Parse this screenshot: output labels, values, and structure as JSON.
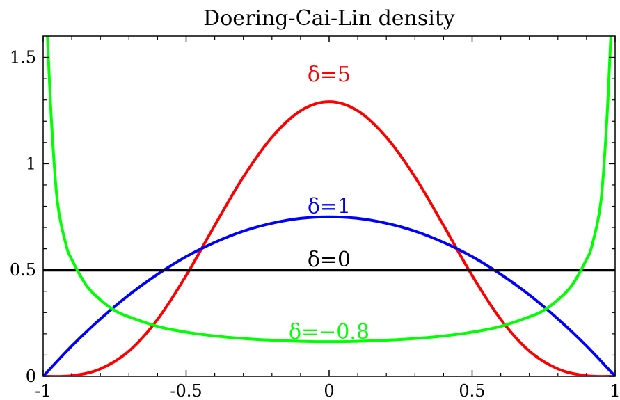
{
  "chart_data": {
    "type": "line",
    "title": "Doering-Cai-Lin density",
    "xlabel": "",
    "ylabel": "",
    "xlim": [
      -1,
      1
    ],
    "ylim": [
      0,
      1.6
    ],
    "x_ticks": [
      -1,
      -0.5,
      0,
      0.5,
      1
    ],
    "x_tick_labels": [
      "-1",
      "-0.5",
      "0",
      "0.5",
      "1"
    ],
    "y_ticks": [
      0,
      0.5,
      1,
      1.5
    ],
    "y_tick_labels": [
      "0",
      "0.5",
      "1",
      "1.5"
    ],
    "grid": false,
    "legend": "none",
    "series": [
      {
        "label": "δ=5",
        "delta": 5,
        "color": "#ff0000",
        "x": [
          -1,
          -0.9,
          -0.8,
          -0.7,
          -0.6,
          -0.5,
          -0.4,
          -0.3,
          -0.2,
          -0.1,
          0,
          0.1,
          0.2,
          0.3,
          0.4,
          0.5,
          0.6,
          0.7,
          0.8,
          0.9,
          1
        ],
        "values": [
          0,
          0.003,
          0.035,
          0.119,
          0.268,
          0.474,
          0.71,
          0.938,
          1.125,
          1.249,
          1.292,
          1.249,
          1.125,
          0.938,
          0.71,
          0.474,
          0.268,
          0.119,
          0.035,
          0.003,
          0
        ]
      },
      {
        "label": "δ=1",
        "delta": 1,
        "color": "#0000ff",
        "x": [
          -1,
          -0.9,
          -0.8,
          -0.7,
          -0.6,
          -0.5,
          -0.4,
          -0.3,
          -0.2,
          -0.1,
          0,
          0.1,
          0.2,
          0.3,
          0.4,
          0.5,
          0.6,
          0.7,
          0.8,
          0.9,
          1
        ],
        "values": [
          0,
          0.143,
          0.27,
          0.383,
          0.48,
          0.563,
          0.63,
          0.683,
          0.72,
          0.743,
          0.75,
          0.743,
          0.72,
          0.683,
          0.63,
          0.563,
          0.48,
          0.383,
          0.27,
          0.143,
          0
        ]
      },
      {
        "label": "δ=0",
        "delta": 0,
        "color": "#000000",
        "x": [
          -1,
          1
        ],
        "values": [
          0.5,
          0.5
        ]
      },
      {
        "label": "δ=−0.8",
        "delta": -0.8,
        "color": "#00ff00",
        "x": [
          -0.985,
          -0.97,
          -0.95,
          -0.92,
          -0.9,
          -0.85,
          -0.8,
          -0.75,
          -0.7,
          -0.6,
          -0.5,
          -0.4,
          -0.3,
          -0.2,
          -0.1,
          0,
          0.1,
          0.2,
          0.3,
          0.4,
          0.5,
          0.6,
          0.7,
          0.75,
          0.8,
          0.85,
          0.9,
          0.92,
          0.95,
          0.97,
          0.985
        ],
        "values": [
          1.6,
          1.18,
          0.82,
          0.62,
          0.55,
          0.43,
          0.36,
          0.31,
          0.28,
          0.235,
          0.208,
          0.19,
          0.178,
          0.17,
          0.165,
          0.163,
          0.165,
          0.17,
          0.178,
          0.19,
          0.208,
          0.235,
          0.28,
          0.31,
          0.36,
          0.43,
          0.55,
          0.62,
          0.82,
          1.18,
          1.6
        ]
      }
    ],
    "annotations": [
      {
        "text": "δ=5",
        "x": 0,
        "y": 1.42,
        "color": "#ff0000"
      },
      {
        "text": "δ=1",
        "x": 0,
        "y": 0.8,
        "color": "#0000ff"
      },
      {
        "text": "δ=0",
        "x": 0,
        "y": 0.55,
        "color": "#000000"
      },
      {
        "text": "δ=−0.8",
        "x": 0,
        "y": 0.21,
        "color": "#00ff00"
      }
    ]
  }
}
